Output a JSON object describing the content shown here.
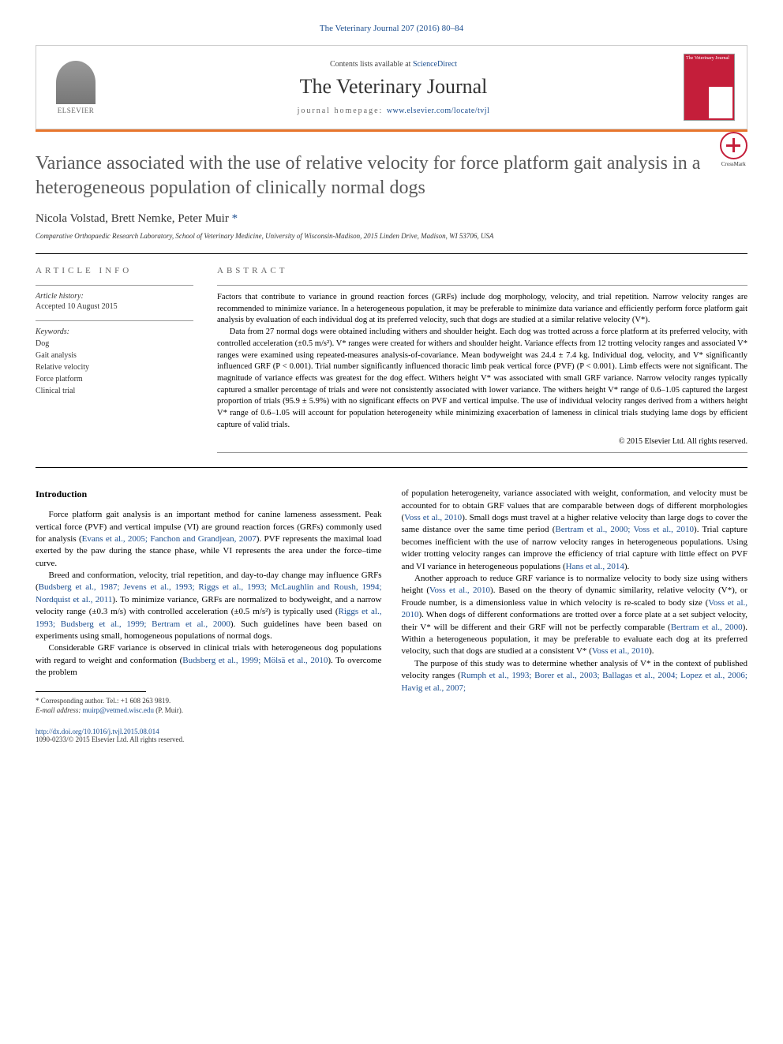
{
  "header": {
    "citation": "The Veterinary Journal 207 (2016) 80–84",
    "contents_prefix": "Contents lists available at ",
    "contents_link": "ScienceDirect",
    "journal_name": "The Veterinary Journal",
    "homepage_prefix": "journal homepage: ",
    "homepage_url": "www.elsevier.com/locate/tvjl",
    "publisher": "ELSEVIER",
    "cover_text": "The Veterinary Journal"
  },
  "crossmark": "CrossMark",
  "title": "Variance associated with the use of relative velocity for force platform gait analysis in a heterogeneous population of clinically normal dogs",
  "authors": {
    "names": "Nicola Volstad, Brett Nemke, Peter Muir ",
    "corresponding": "*"
  },
  "affiliation": "Comparative Orthopaedic Research Laboratory, School of Veterinary Medicine, University of Wisconsin-Madison, 2015 Linden Drive, Madison, WI 53706, USA",
  "article_info": {
    "heading": "ARTICLE INFO",
    "history_label": "Article history:",
    "accepted": "Accepted 10 August 2015",
    "keywords_label": "Keywords:",
    "keywords": [
      "Dog",
      "Gait analysis",
      "Relative velocity",
      "Force platform",
      "Clinical trial"
    ]
  },
  "abstract": {
    "heading": "ABSTRACT",
    "para1": "Factors that contribute to variance in ground reaction forces (GRFs) include dog morphology, velocity, and trial repetition. Narrow velocity ranges are recommended to minimize variance. In a heterogeneous population, it may be preferable to minimize data variance and efficiently perform force platform gait analysis by evaluation of each individual dog at its preferred velocity, such that dogs are studied at a similar relative velocity (V*).",
    "para2": "Data from 27 normal dogs were obtained including withers and shoulder height. Each dog was trotted across a force platform at its preferred velocity, with controlled acceleration (±0.5 m/s²). V* ranges were created for withers and shoulder height. Variance effects from 12 trotting velocity ranges and associated V* ranges were examined using repeated-measures analysis-of-covariance. Mean bodyweight was 24.4 ± 7.4 kg. Individual dog, velocity, and V* significantly influenced GRF (P < 0.001). Trial number significantly influenced thoracic limb peak vertical force (PVF) (P < 0.001). Limb effects were not significant. The magnitude of variance effects was greatest for the dog effect. Withers height V* was associated with small GRF variance. Narrow velocity ranges typically captured a smaller percentage of trials and were not consistently associated with lower variance. The withers height V* range of 0.6–1.05 captured the largest proportion of trials (95.9 ± 5.9%) with no significant effects on PVF and vertical impulse. The use of individual velocity ranges derived from a withers height V* range of 0.6–1.05 will account for population heterogeneity while minimizing exacerbation of lameness in clinical trials studying lame dogs by efficient capture of valid trials.",
    "copyright": "© 2015 Elsevier Ltd. All rights reserved."
  },
  "introduction": {
    "heading": "Introduction",
    "p1": "Force platform gait analysis is an important method for canine lameness assessment. Peak vertical force (PVF) and vertical impulse (VI) are ground reaction forces (GRFs) commonly used for analysis (",
    "p1_ref": "Evans et al., 2005; Fanchon and Grandjean, 2007",
    "p1_end": "). PVF represents the maximal load exerted by the paw during the stance phase, while VI represents the area under the force–time curve.",
    "p2": "Breed and conformation, velocity, trial repetition, and day-to-day change may influence GRFs (",
    "p2_ref": "Budsberg et al., 1987; Jevens et al., 1993; Riggs et al., 1993; McLaughlin and Roush, 1994; Nordquist et al., 2011",
    "p2_mid": "). To minimize variance, GRFs are normalized to bodyweight, and a narrow velocity range (±0.3 m/s) with controlled acceleration (±0.5 m/s²) is typically used (",
    "p2_ref2": "Riggs et al., 1993; Budsberg et al., 1999; Bertram et al., 2000",
    "p2_end": "). Such guidelines have been based on experiments using small, homogeneous populations of normal dogs.",
    "p3": "Considerable GRF variance is observed in clinical trials with heterogeneous dog populations with regard to weight and conformation (",
    "p3_ref": "Budsberg et al., 1999; Mölsä et al., 2010",
    "p3_end": "). To overcome the problem",
    "p4": "of population heterogeneity, variance associated with weight, conformation, and velocity must be accounted for to obtain GRF values that are comparable between dogs of different morphologies (",
    "p4_ref": "Voss et al., 2010",
    "p4_mid": "). Small dogs must travel at a higher relative velocity than large dogs to cover the same distance over the same time period (",
    "p4_ref2": "Bertram et al., 2000; Voss et al., 2010",
    "p4_mid2": "). Trial capture becomes inefficient with the use of narrow velocity ranges in heterogeneous populations. Using wider trotting velocity ranges can improve the efficiency of trial capture with little effect on PVF and VI variance in heterogeneous populations (",
    "p4_ref3": "Hans et al., 2014",
    "p4_end": ").",
    "p5": "Another approach to reduce GRF variance is to normalize velocity to body size using withers height (",
    "p5_ref": "Voss et al., 2010",
    "p5_mid": "). Based on the theory of dynamic similarity, relative velocity (V*), or Froude number, is a dimensionless value in which velocity is re-scaled to body size (",
    "p5_ref2": "Voss et al., 2010",
    "p5_mid2": "). When dogs of different conformations are trotted over a force plate at a set subject velocity, their V* will be different and their GRF will not be perfectly comparable (",
    "p5_ref3": "Bertram et al., 2000",
    "p5_mid3": "). Within a heterogeneous population, it may be preferable to evaluate each dog at its preferred velocity, such that dogs are studied at a consistent V* (",
    "p5_ref4": "Voss et al., 2010",
    "p5_end": ").",
    "p6": "The purpose of this study was to determine whether analysis of V* in the context of published velocity ranges (",
    "p6_ref": "Rumph et al., 1993; Borer et al., 2003; Ballagas et al., 2004; Lopez et al., 2006; Havig et al., 2007;"
  },
  "footer": {
    "corresponding": "* Corresponding author. Tel.: +1 608 263 9819.",
    "email_label": "E-mail address: ",
    "email": "muirp@vetmed.wisc.edu",
    "email_name": " (P. Muir).",
    "doi": "http://dx.doi.org/10.1016/j.tvjl.2015.08.014",
    "issn": "1090-0233/© 2015 Elsevier Ltd. All rights reserved."
  }
}
